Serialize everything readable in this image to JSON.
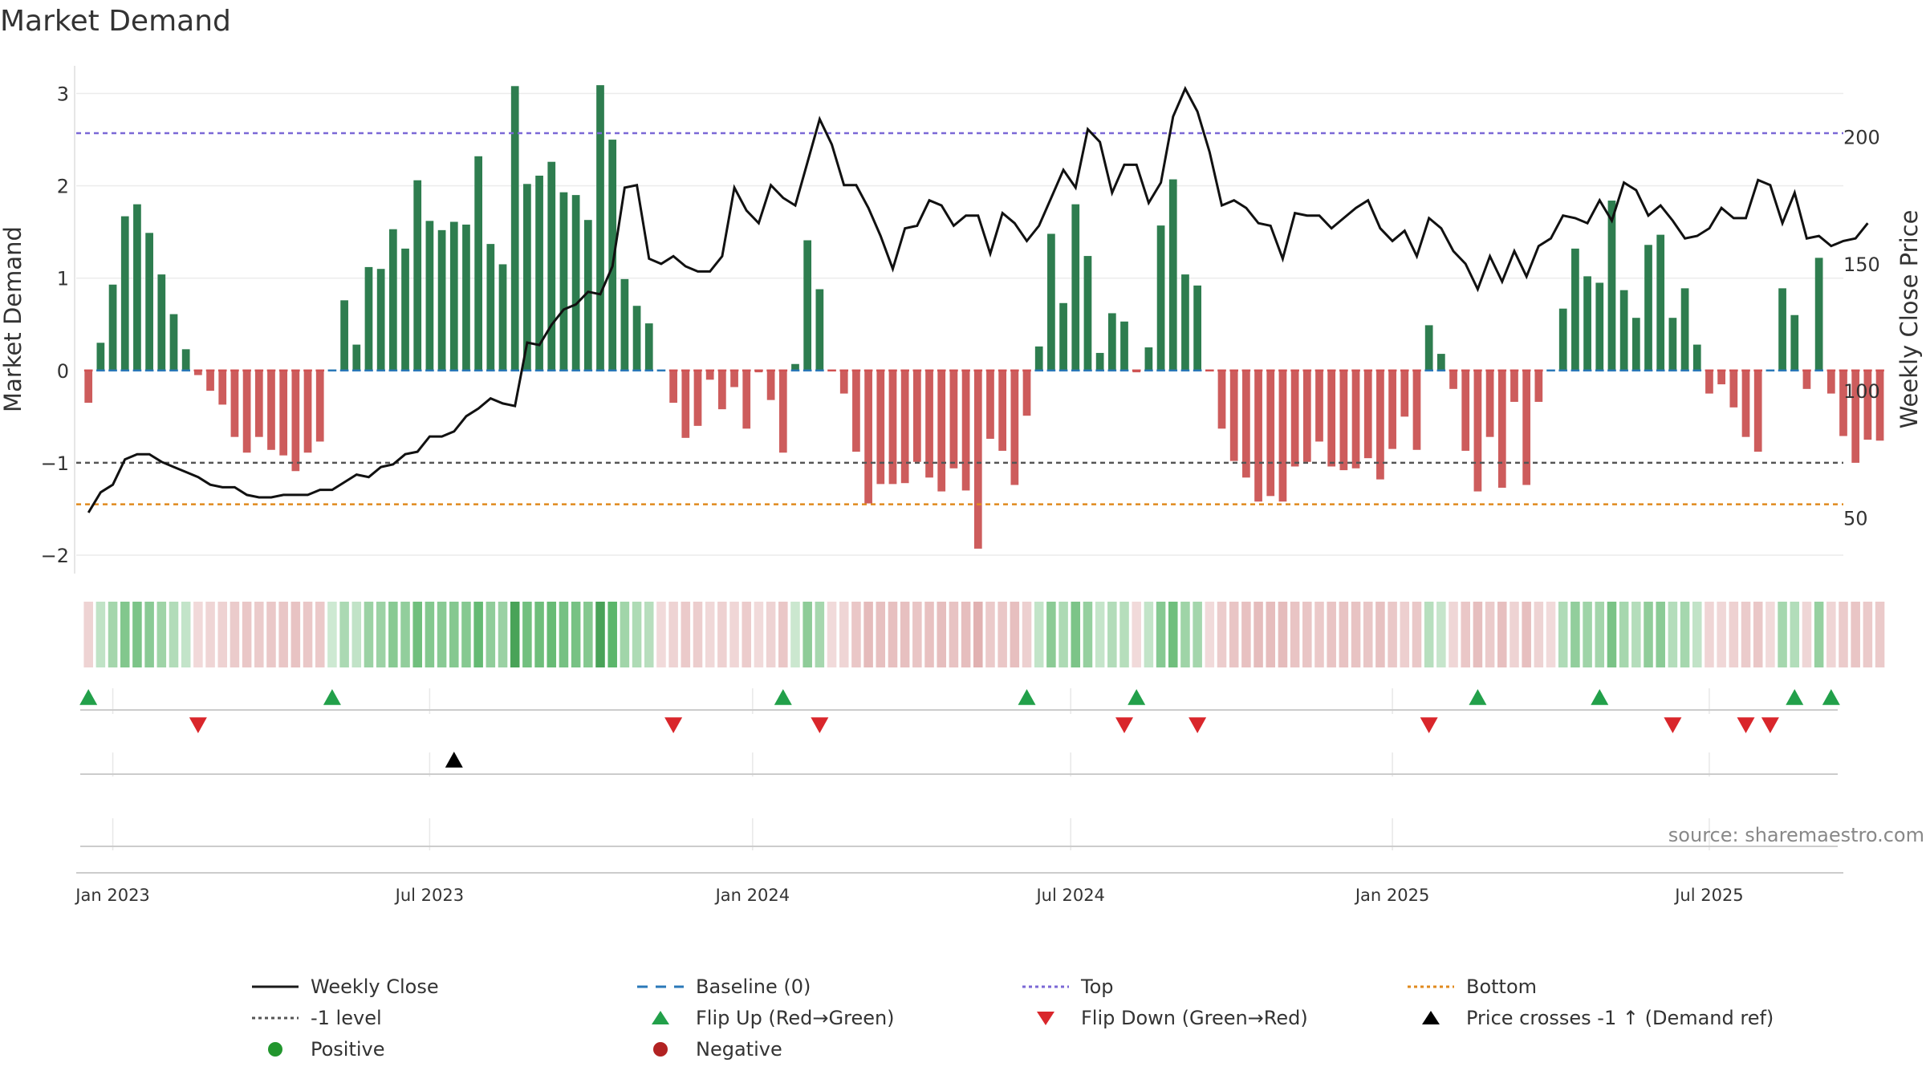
{
  "chart_data": {
    "type": "bar",
    "title": "Market Demand",
    "ylabel_left": "Market Demand",
    "ylabel_right": "Weekly Close Price",
    "ylim_left": [
      -2.2,
      3.3
    ],
    "yticks_left": [
      "3",
      "2",
      "1",
      "0",
      "−1",
      "−2"
    ],
    "ylim_right": [
      28,
      228
    ],
    "yticks_right": [
      "200",
      "150",
      "100",
      "50"
    ],
    "xlim_weeks": [
      -1,
      144
    ],
    "x_ticks": [
      {
        "label": "Jan 2023",
        "week": 2
      },
      {
        "label": "Jul 2023",
        "week": 28
      },
      {
        "label": "Jan 2024",
        "week": 54.5
      },
      {
        "label": "Jul 2024",
        "week": 80.6
      },
      {
        "label": "Jan 2025",
        "week": 107
      },
      {
        "label": "Jul 2025",
        "week": 133
      }
    ],
    "reference_lines": {
      "baseline": 0,
      "top": 2.57,
      "level_minus_1": -1,
      "bottom": -1.45
    },
    "demand": [
      -0.35,
      0.3,
      0.93,
      1.67,
      1.8,
      1.49,
      1.04,
      0.61,
      0.23,
      -0.05,
      -0.22,
      -0.37,
      -0.72,
      -0.89,
      -0.72,
      -0.86,
      -0.92,
      -1.09,
      -0.89,
      -0.77,
      0.01,
      0.76,
      0.28,
      1.12,
      1.1,
      1.53,
      1.32,
      2.06,
      1.62,
      1.52,
      1.61,
      1.58,
      2.32,
      1.37,
      1.15,
      3.08,
      2.02,
      2.11,
      2.26,
      1.93,
      1.9,
      1.63,
      3.09,
      2.5,
      0.99,
      0.7,
      0.51,
      0.0,
      -0.35,
      -0.73,
      -0.6,
      -0.1,
      -0.42,
      -0.18,
      -0.63,
      -0.02,
      -0.32,
      -0.89,
      0.07,
      1.41,
      0.88,
      -0.01,
      -0.25,
      -0.88,
      -1.44,
      -1.23,
      -1.23,
      -1.22,
      -0.99,
      -1.16,
      -1.31,
      -1.06,
      -1.3,
      -1.93,
      -0.74,
      -0.87,
      -1.24,
      -0.49,
      0.26,
      1.48,
      0.73,
      1.8,
      1.24,
      0.19,
      0.62,
      0.53,
      -0.02,
      0.25,
      1.57,
      2.07,
      1.04,
      0.92,
      -0.01,
      -0.63,
      -0.98,
      -1.16,
      -1.42,
      -1.36,
      -1.42,
      -1.04,
      -0.99,
      -0.77,
      -1.04,
      -1.08,
      -1.06,
      -0.95,
      -1.18,
      -0.85,
      -0.5,
      -0.86,
      0.49,
      0.18,
      -0.2,
      -0.87,
      -1.31,
      -0.72,
      -1.27,
      -0.34,
      -1.24,
      -0.34,
      0.0,
      0.67,
      1.32,
      1.02,
      0.95,
      1.84,
      0.87,
      0.57,
      1.36,
      1.47,
      0.57,
      0.89,
      0.28,
      -0.25,
      -0.15,
      -0.4,
      -0.72,
      -0.88,
      0.0,
      0.89,
      0.6,
      -0.2,
      1.22,
      -0.25,
      -0.71,
      -1.0,
      -0.75,
      -0.76
    ],
    "weekly_close": [
      52,
      60,
      63,
      73,
      75,
      75,
      72,
      70,
      68,
      66,
      63,
      62,
      62,
      59,
      58,
      58,
      59,
      59,
      59,
      61,
      61,
      64,
      67,
      66,
      70,
      71,
      75,
      76,
      82,
      82,
      84,
      90,
      93,
      97,
      95,
      94,
      119,
      118,
      126,
      132,
      134,
      139,
      138,
      149,
      180,
      181,
      152,
      150,
      153,
      149,
      147,
      147,
      153,
      180,
      171,
      166,
      181,
      176,
      173,
      190,
      207,
      197,
      181,
      181,
      172,
      161,
      148,
      164,
      165,
      175,
      173,
      165,
      169,
      169,
      154,
      170,
      166,
      159,
      165,
      176,
      187,
      180,
      203,
      198,
      178,
      189,
      189,
      174,
      182,
      208,
      219,
      210,
      194,
      173,
      175,
      172,
      166,
      165,
      152,
      170,
      169,
      169,
      164,
      168,
      172,
      175,
      164,
      159,
      163,
      153,
      168,
      164,
      155,
      150,
      140,
      153,
      143,
      155,
      145,
      157,
      160,
      169,
      168,
      166,
      175,
      167,
      182,
      179,
      169,
      173,
      167,
      160,
      161,
      164,
      172,
      168,
      168,
      183,
      181,
      166,
      178,
      160,
      161,
      157,
      159,
      160,
      166
    ],
    "signal_strip_reference": "one tile per week, green if demand>0, red otherwise",
    "markers": {
      "flip_up_weeks": [
        0,
        20,
        57,
        77,
        86,
        114,
        124,
        140,
        143
      ],
      "flip_down_weeks": [
        9,
        48,
        60,
        85,
        91,
        110,
        130,
        136,
        138
      ],
      "price_cross_weeks": [
        30
      ]
    },
    "source": "source: sharemaestro.com",
    "legend": [
      {
        "label": "Weekly Close",
        "symbol": "line",
        "color": "#1a1a1a"
      },
      {
        "label": "Baseline (0)",
        "symbol": "dash",
        "color": "#2a78b8"
      },
      {
        "label": "Top",
        "symbol": "dot",
        "color": "#7b68d6"
      },
      {
        "label": "Bottom",
        "symbol": "dot",
        "color": "#e08a1e"
      },
      {
        "label": "-1 level",
        "symbol": "dot",
        "color": "#555555"
      },
      {
        "label": "Flip Up (Red→Green)",
        "symbol": "triangle-up",
        "color": "#22a04a"
      },
      {
        "label": "Flip Down (Green→Red)",
        "symbol": "triangle-down",
        "color": "#d9262b"
      },
      {
        "label": "Price crosses -1 ↑ (Demand ref)",
        "symbol": "triangle-up",
        "color": "#000000"
      },
      {
        "label": "Positive",
        "symbol": "circle",
        "color": "#22962e"
      },
      {
        "label": "Negative",
        "symbol": "circle",
        "color": "#b22222"
      }
    ],
    "colors": {
      "positive_bar": "#2e7d4f",
      "negative_bar": "#cd5c5c"
    }
  }
}
